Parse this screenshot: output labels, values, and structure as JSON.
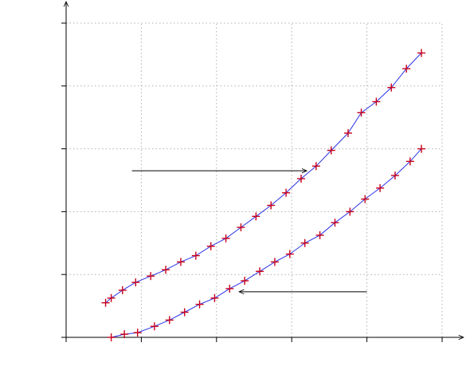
{
  "chart_data": {
    "type": "line",
    "title": "",
    "xlabel": "",
    "ylabel": "",
    "grid": true,
    "xlim": [
      0,
      20
    ],
    "ylim": [
      0,
      20
    ],
    "x_ticks": [
      0,
      4,
      8,
      12,
      16,
      20
    ],
    "y_ticks": [
      0,
      4,
      8,
      12,
      16,
      20
    ],
    "colors": {
      "line": "#2a33e6",
      "marker": "#c8001a",
      "grid": "#b0b0b0"
    },
    "series": [
      {
        "x": [
          2.1,
          2.4,
          3.0,
          3.7,
          4.5,
          5.3,
          6.1,
          6.9,
          7.7,
          8.5,
          9.3,
          10.1,
          10.9,
          11.7,
          12.5,
          13.3,
          14.1,
          15.0,
          15.7,
          16.5,
          17.3,
          18.1,
          18.9
        ],
        "y": [
          2.2,
          2.5,
          3.0,
          3.5,
          3.9,
          4.3,
          4.8,
          5.2,
          5.8,
          6.3,
          7.0,
          7.7,
          8.4,
          9.2,
          10.1,
          10.9,
          11.9,
          13.0,
          14.3,
          15.0,
          15.9,
          17.1,
          18.1
        ]
      },
      {
        "x": [
          2.4,
          3.1,
          3.8,
          4.7,
          5.5,
          6.3,
          7.1,
          7.9,
          8.7,
          9.5,
          10.3,
          11.1,
          11.9,
          12.7,
          13.5,
          14.3,
          15.1,
          15.9,
          16.7,
          17.5,
          18.3,
          18.9
        ],
        "y": [
          0.0,
          0.2,
          0.3,
          0.7,
          1.1,
          1.6,
          2.1,
          2.5,
          3.1,
          3.6,
          4.2,
          4.8,
          5.3,
          6.0,
          6.5,
          7.3,
          8.0,
          8.8,
          9.5,
          10.3,
          11.2,
          12.0
        ]
      }
    ],
    "annotations": [
      {
        "type": "arrow",
        "from": [
          3.5,
          10.6
        ],
        "to": [
          12.8,
          10.6
        ]
      },
      {
        "type": "arrow",
        "from": [
          16,
          2.9
        ],
        "to": [
          9.2,
          2.9
        ]
      }
    ]
  }
}
